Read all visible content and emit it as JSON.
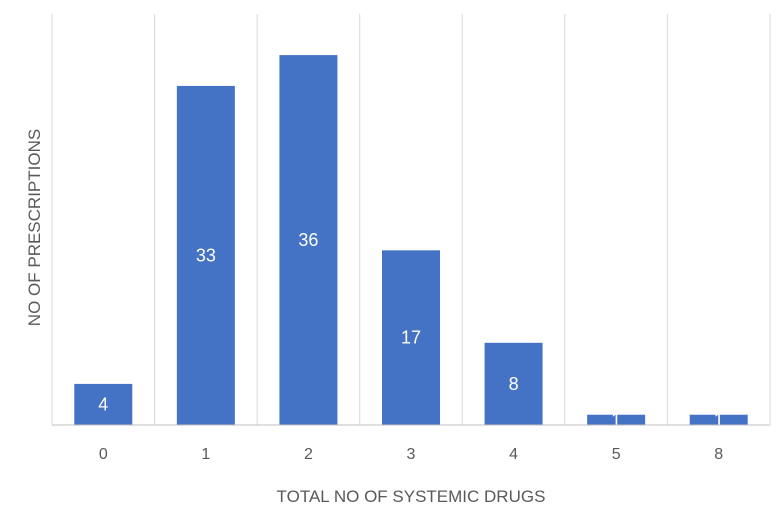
{
  "chart_data": {
    "type": "bar",
    "title": "",
    "xlabel": "TOTAL NO OF SYSTEMIC DRUGS",
    "ylabel": "NO OF PRESCRIPTIONS",
    "categories": [
      "0",
      "1",
      "2",
      "3",
      "4",
      "5",
      "8"
    ],
    "values": [
      4,
      33,
      36,
      17,
      8,
      1,
      1
    ],
    "data_labels": [
      "4",
      "33",
      "36",
      "17",
      "8",
      "1",
      "1"
    ],
    "ylim": [
      0,
      40
    ],
    "grid": {
      "vertical": true,
      "horizontal": false
    },
    "legend": "none",
    "colors": {
      "bar": "#4472C4",
      "data_label": "#ffffff",
      "gridline": "#D9D9D9",
      "axis_line": "#BFBFBF",
      "text": "#595959"
    }
  }
}
